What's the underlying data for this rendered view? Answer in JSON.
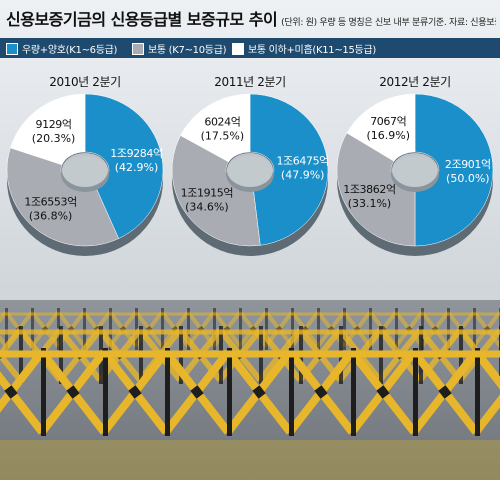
{
  "header": {
    "title": "신용보증기금의 신용등급별 보증규모 추이",
    "subtitle": "(단위: 원)  우량 등 명칭은 신보 내부 분류기준.  자료: 신용보증기금"
  },
  "legend": [
    {
      "label": "우량+양호(K1~6등급)",
      "color": "#1a8fc9"
    },
    {
      "label": "보통 (K7~10등급)",
      "color": "#a9adb3"
    },
    {
      "label": "보통 이하+미흡(K11~15등급)",
      "color": "#ffffff"
    }
  ],
  "chart_data": [
    {
      "type": "pie",
      "title": "2010년 2분기",
      "slices": [
        {
          "series": "우량+양호(K1~6등급)",
          "value": 42.9,
          "label": "1조9284억",
          "pct_label": "(42.9%)"
        },
        {
          "series": "보통 (K7~10등급)",
          "value": 36.8,
          "label": "1조6553억",
          "pct_label": "(36.8%)"
        },
        {
          "series": "보통 이하+미흡(K11~15등급)",
          "value": 20.3,
          "label": "9129억",
          "pct_label": "(20.3%)"
        }
      ]
    },
    {
      "type": "pie",
      "title": "2011년 2분기",
      "slices": [
        {
          "series": "우량+양호(K1~6등급)",
          "value": 47.9,
          "label": "1조6475억",
          "pct_label": "(47.9%)"
        },
        {
          "series": "보통 (K7~10등급)",
          "value": 34.6,
          "label": "1조1915억",
          "pct_label": "(34.6%)"
        },
        {
          "series": "보통 이하+미흡(K11~15등급)",
          "value": 17.5,
          "label": "6024억",
          "pct_label": "(17.5%)"
        }
      ]
    },
    {
      "type": "pie",
      "title": "2012년 2분기",
      "slices": [
        {
          "series": "우량+양호(K1~6등급)",
          "value": 50.0,
          "label": "2조901억",
          "pct_label": "(50.0%)"
        },
        {
          "series": "보통 (K7~10등급)",
          "value": 33.1,
          "label": "1조3862억",
          "pct_label": "(33.1%)"
        },
        {
          "series": "보통 이하+미흡(K11~15등급)",
          "value": 16.9,
          "label": "7067억",
          "pct_label": "(16.9%)"
        }
      ]
    }
  ]
}
